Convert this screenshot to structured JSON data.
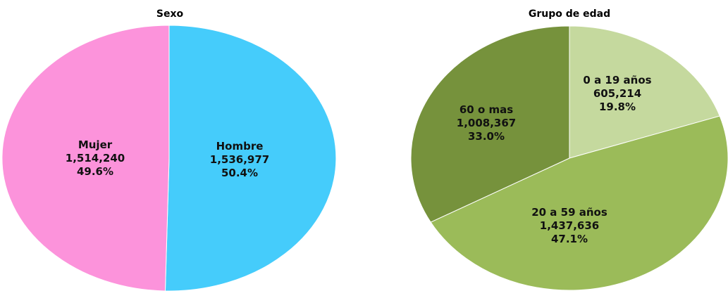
{
  "chart_data": [
    {
      "type": "pie",
      "title": "Sexo",
      "slices": [
        {
          "label": "Hombre",
          "value": 1536977,
          "value_text": "1,536,977",
          "percent": 50.4,
          "percent_text": "50.4%",
          "color": "#45CCFB"
        },
        {
          "label": "Mujer",
          "value": 1514240,
          "value_text": "1,514,240",
          "percent": 49.6,
          "percent_text": "49.6%",
          "color": "#FC93DB"
        }
      ]
    },
    {
      "type": "pie",
      "title": "Grupo de edad",
      "slices": [
        {
          "label": "0 a 19 años",
          "value": 605214,
          "value_text": "605,214",
          "percent": 19.8,
          "percent_text": "19.8%",
          "color": "#C5D99E"
        },
        {
          "label": "20 a 59 años",
          "value": 1437636,
          "value_text": "1,437,636",
          "percent": 47.1,
          "percent_text": "47.1%",
          "color": "#9BBB59"
        },
        {
          "label": "60 o mas",
          "value": 1008367,
          "value_text": "1,008,367",
          "percent": 33.0,
          "percent_text": "33.0%",
          "color": "#76923C"
        }
      ]
    }
  ]
}
